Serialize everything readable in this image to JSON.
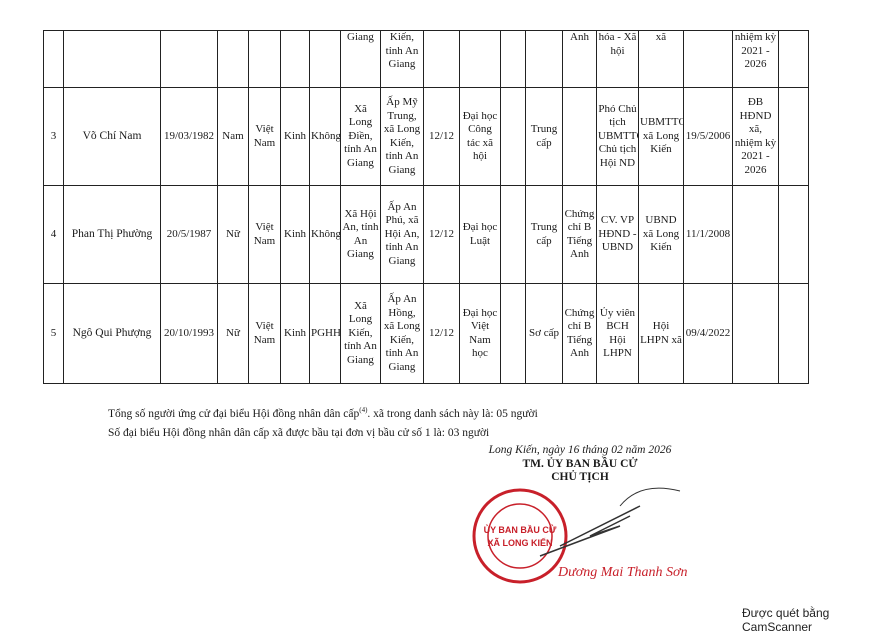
{
  "table": {
    "rows": [
      {
        "stt": "",
        "name": "",
        "dob": "",
        "gender": "",
        "nationality": "",
        "ethnic": "",
        "religion": "",
        "birthplace": "Giang",
        "residence": "Kiến, tỉnh An Giang",
        "general_edu": "",
        "professional": "",
        "degree": "",
        "political": "",
        "foreign_lang": "Anh",
        "position": "hóa - Xã hội",
        "workplace": "xã",
        "party_date": "",
        "delegate": "nhiệm kỳ 2021 - 2026",
        "extra": ""
      },
      {
        "stt": "3",
        "name": "Võ Chí Nam",
        "dob": "19/03/1982",
        "gender": "Nam",
        "nationality": "Việt Nam",
        "ethnic": "Kinh",
        "religion": "Không",
        "birthplace": "Xã Long Điền, tỉnh An Giang",
        "residence": "Ấp Mỹ Trung, xã Long Kiến, tỉnh An Giang",
        "general_edu": "12/12",
        "professional": "Đại học Công tác xã hội",
        "degree": "",
        "political": "Trung cấp",
        "foreign_lang": "",
        "position": "Phó Chủ tịch UBMTTQ-Chủ tịch Hội ND",
        "workplace": "UBMTTQ xã Long Kiến",
        "party_date": "19/5/2006",
        "delegate": "ĐB HĐND xã, nhiệm kỳ 2021 - 2026",
        "extra": ""
      },
      {
        "stt": "4",
        "name": "Phan Thị Phường",
        "dob": "20/5/1987",
        "gender": "Nữ",
        "nationality": "Việt Nam",
        "ethnic": "Kinh",
        "religion": "Không",
        "birthplace": "Xã Hội An, tỉnh An Giang",
        "residence": "Ấp An Phú, xã Hội An, tỉnh An Giang",
        "general_edu": "12/12",
        "professional": "Đại học Luật",
        "degree": "",
        "political": "Trung cấp",
        "foreign_lang": "Chứng chỉ B Tiếng Anh",
        "position": "CV. VP HĐND - UBND",
        "workplace": "UBND xã Long Kiến",
        "party_date": "11/1/2008",
        "delegate": "",
        "extra": ""
      },
      {
        "stt": "5",
        "name": "Ngô Qui Phượng",
        "dob": "20/10/1993",
        "gender": "Nữ",
        "nationality": "Việt Nam",
        "ethnic": "Kinh",
        "religion": "PGHH",
        "birthplace": "Xã Long Kiến, tỉnh An Giang",
        "residence": "Ấp An Hồng, xã Long Kiến, tỉnh An Giang",
        "general_edu": "12/12",
        "professional": "Đại học Việt Nam học",
        "degree": "",
        "political": "Sơ cấp",
        "foreign_lang": "Chứng chỉ B Tiếng Anh",
        "position": "Ủy viên BCH Hội LHPN",
        "workplace": "Hội LHPN xã",
        "party_date": "09/4/2022",
        "delegate": "",
        "extra": ""
      }
    ]
  },
  "notes": {
    "line1_a": "Tổng số người ứng cử đại biểu Hội đồng nhân dân cấp",
    "line1_sup": "(4)",
    "line1_b": ". xã  trong danh sách này là: 05 người",
    "line2": "Số đại biểu Hội đồng nhân dân cấp xã được bầu tại đơn vị bầu cử số 1  là: 03 người"
  },
  "signature": {
    "place_date": "Long Kiến, ngày 16  tháng 02  năm 2026",
    "org": "TM. ỦY BAN BẦU CỬ",
    "title": "CHỦ TỊCH",
    "signer": "Dương Mai Thanh Sơn"
  },
  "stamp": {
    "outer": "CỘNG HÒA X.H.C.N VIỆT NAM",
    "inner1": "ỦY BAN BẦU CỬ",
    "inner2": "XÃ LONG KIẾN",
    "bottom": "TỈNH AN GIANG",
    "color": "#c8202a"
  },
  "watermark": "Được quét bằng CamScanner"
}
